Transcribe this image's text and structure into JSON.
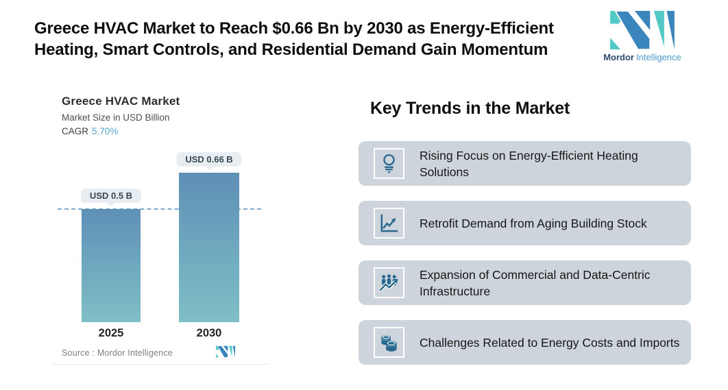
{
  "header": {
    "title_line1": "Greece HVAC Market to Reach $0.66 Bn by 2030 as Energy-Efficient",
    "title_line2": "Heating, Smart Controls, and Residential Demand Gain Momentum"
  },
  "brand": {
    "name_bold": "Mordor",
    "name_light": "Intelligence"
  },
  "chart": {
    "title": "Greece HVAC Market",
    "subtitle": "Market Size in USD Billion",
    "cagr_label": "CAGR",
    "cagr_value": "5.70%",
    "source_label": "Source :  Mordor Intelligence"
  },
  "chart_data": {
    "type": "bar",
    "title": "Greece HVAC Market",
    "ylabel": "Market Size in USD Billion",
    "cagr": "5.70%",
    "categories": [
      "2025",
      "2030"
    ],
    "values": [
      0.5,
      0.66
    ],
    "value_labels": [
      "USD 0.5 B",
      "USD 0.66 B"
    ],
    "reference_line": 0.5,
    "ylim": [
      0,
      0.8
    ],
    "grid": "off",
    "colors": {
      "bar_top": "#5e90b6",
      "bar_bottom": "#7fbfc7",
      "dashed_line": "#7aa8ce",
      "label_pill_bg": "#e7edf0",
      "cagr_value": "#57a2ce"
    }
  },
  "trends": {
    "heading": "Key Trends in the Market",
    "items": [
      {
        "icon": "lightbulb-icon",
        "text": "Rising Focus on Energy-Efficient Heating Solutions"
      },
      {
        "icon": "line-chart-icon",
        "text": "Retrofit Demand from Aging Building Stock"
      },
      {
        "icon": "people-growth-icon",
        "text": "Expansion of Commercial and Data-Centric Infrastructure"
      },
      {
        "icon": "coins-icon",
        "text": "Challenges Related to Energy Costs and Imports"
      }
    ]
  },
  "logo_colors": {
    "teal": "#52c9c5",
    "blue": "#3a86bc"
  }
}
